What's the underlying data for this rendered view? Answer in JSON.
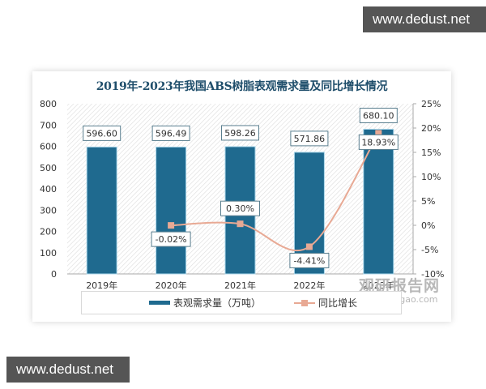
{
  "watermarks": {
    "top": "www.dedust.net",
    "bottom": "www.dedust.net"
  },
  "colors": {
    "bar": "#1f6a8f",
    "line": "#e8a994",
    "title": "#1f4e6b"
  },
  "logo": {
    "cn": "观研报告网",
    "en": "chinabaogao.com"
  },
  "chart_data": {
    "type": "bar",
    "title": "2019年-2023年我国ABS树脂表观需求量及同比增长情况",
    "categories": [
      "2019年",
      "2020年",
      "2021年",
      "2022年",
      "2023年"
    ],
    "series": [
      {
        "name": "表观需求量（万吨）",
        "type": "bar",
        "axis": "left",
        "values": [
          596.6,
          596.49,
          598.26,
          571.86,
          680.1
        ],
        "labels": [
          "596.60",
          "596.49",
          "598.26",
          "571.86",
          "680.10"
        ]
      },
      {
        "name": "同比增长",
        "type": "line",
        "axis": "right",
        "values": [
          null,
          -0.02,
          0.3,
          -4.41,
          18.93
        ],
        "labels": [
          "",
          "-0.02%",
          "0.30%",
          "-4.41%",
          "18.93%"
        ]
      }
    ],
    "left_axis": {
      "ylim": [
        0,
        800
      ],
      "ticks": [
        "800",
        "700",
        "600",
        "500",
        "400",
        "300",
        "200",
        "100",
        "0"
      ]
    },
    "right_axis": {
      "ylim": [
        -10,
        25
      ],
      "ticks": [
        "25%",
        "20%",
        "15%",
        "10%",
        "5%",
        "0%",
        "-5%",
        "-10%"
      ]
    },
    "xlabel": "",
    "ylabel": "",
    "grid": false,
    "legend_position": "bottom"
  }
}
